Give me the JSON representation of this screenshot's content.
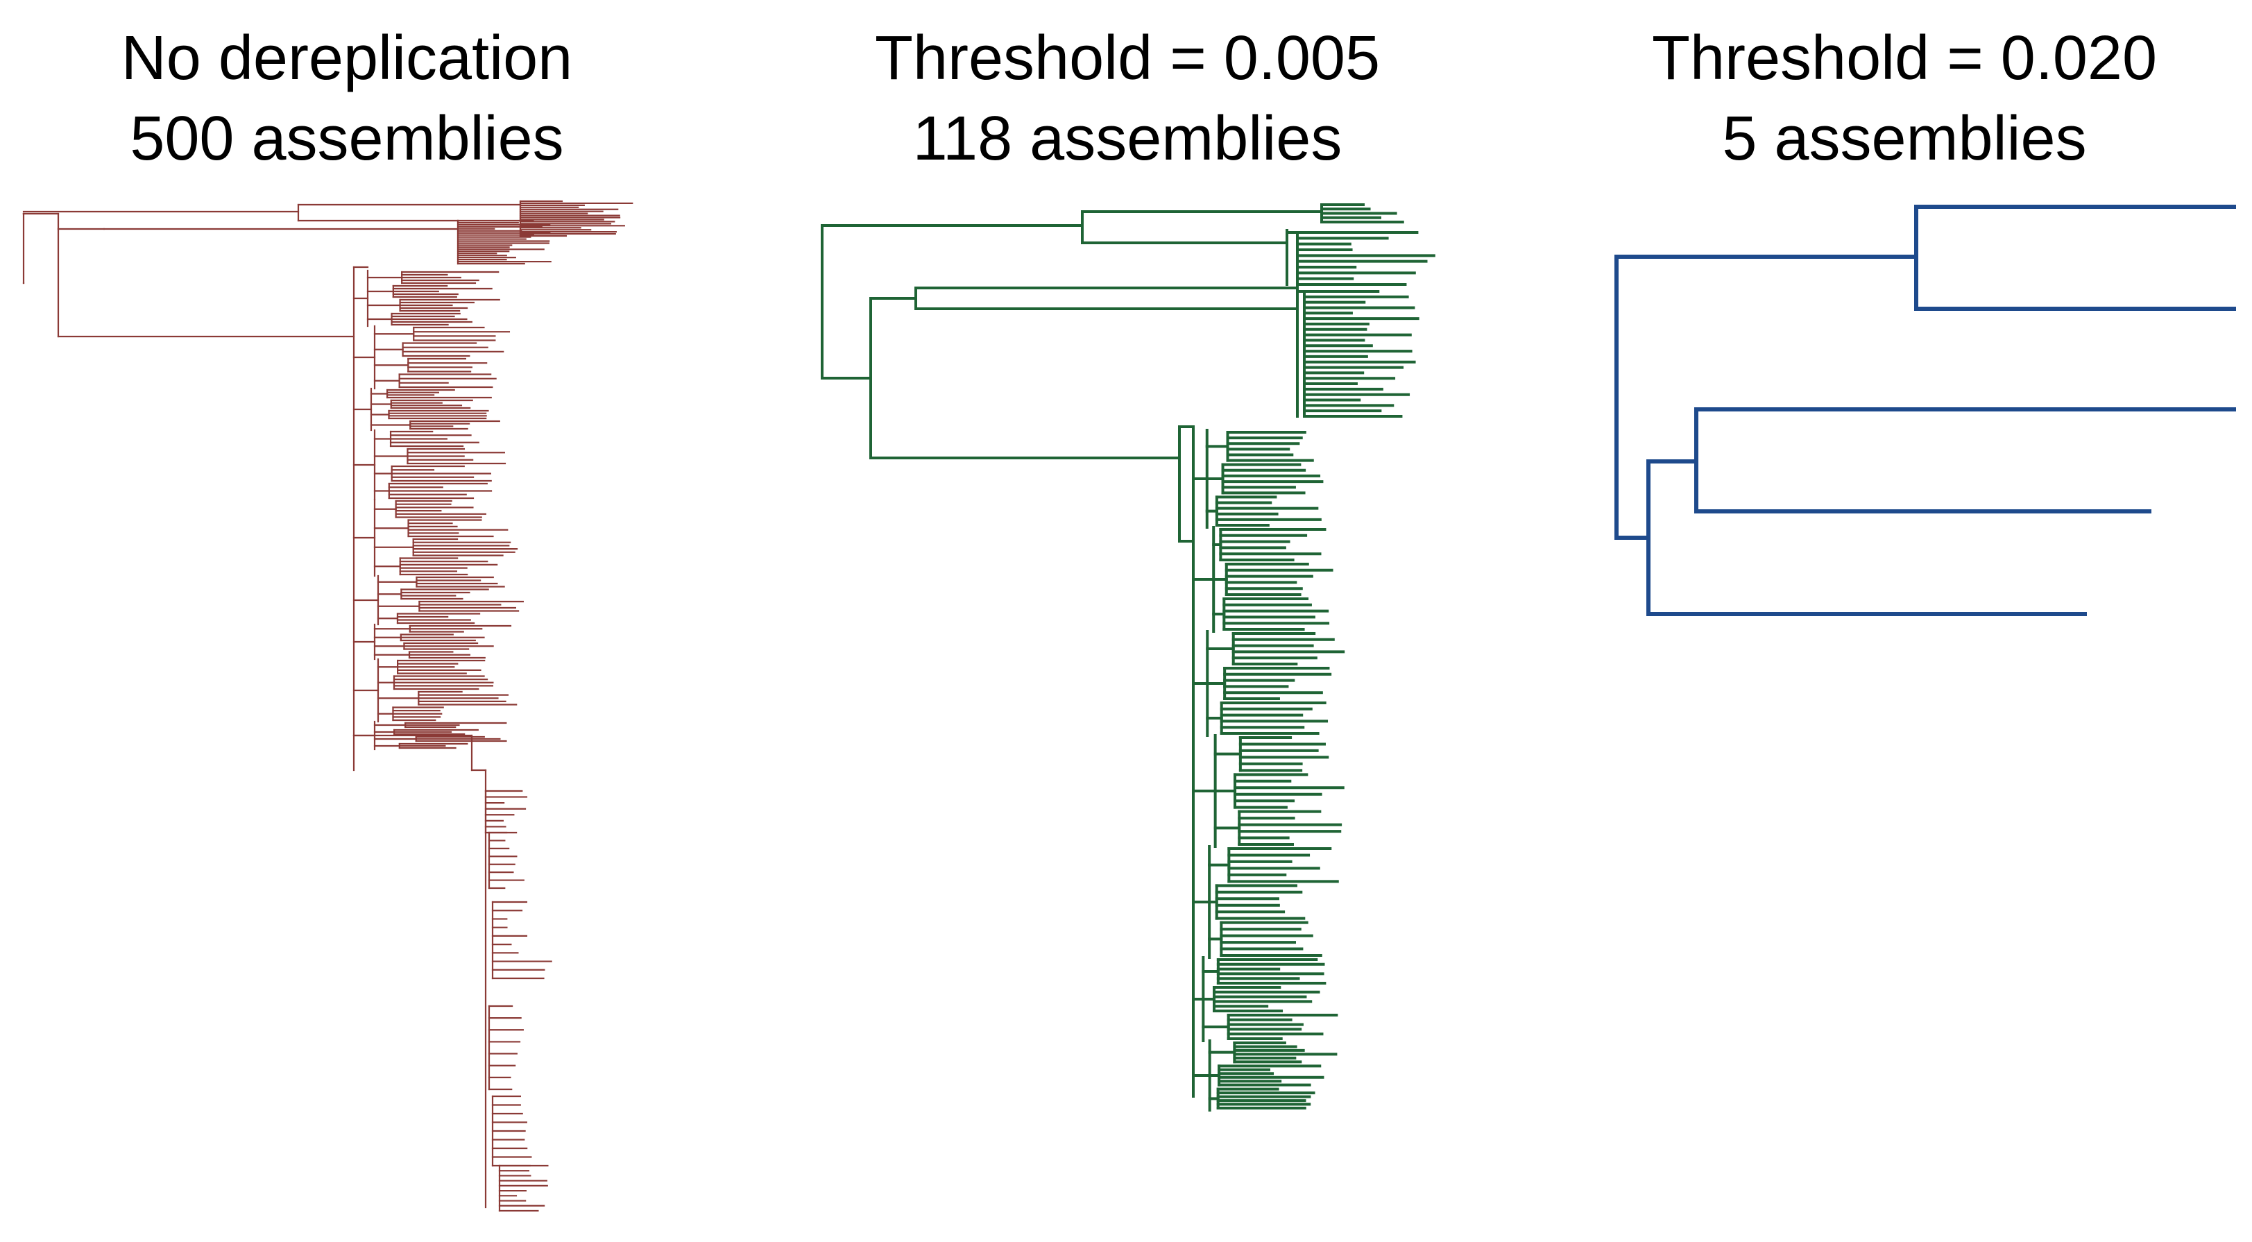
{
  "figure": {
    "panels": [
      {
        "id": "no-dereplication",
        "title_line1": "No dereplication",
        "title_line2": "500 assemblies",
        "color": "#8B3A36"
      },
      {
        "id": "threshold-0005",
        "title_line1": "Threshold = 0.005",
        "title_line2": "118 assemblies",
        "color": "#1F6435"
      },
      {
        "id": "threshold-0020",
        "title_line1": "Threshold = 0.020",
        "title_line2": "5 assemblies",
        "color": "#1E4A8C"
      }
    ]
  }
}
